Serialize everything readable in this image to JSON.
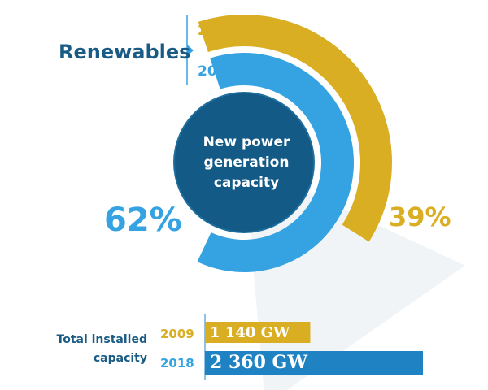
{
  "chart_data": {
    "type": "radial-bar",
    "title": "Renewables",
    "center_label": "New power generation capacity",
    "series": [
      {
        "name": "2009",
        "share_percent": 39,
        "label": "39%",
        "color": "#d9ae22"
      },
      {
        "name": "2018",
        "share_percent": 62,
        "label": "62%",
        "color": "#35a3e2"
      }
    ],
    "total_installed": {
      "label": "Total installed capacity",
      "unit": "GW",
      "bars": [
        {
          "year": "2009",
          "value": 1140,
          "label": "1 140 GW",
          "color": "#d9ae22"
        },
        {
          "year": "2018",
          "value": 2360,
          "label": "2 360 GW",
          "color": "#1f83c3"
        }
      ]
    }
  },
  "colors": {
    "title": "#1a5b85",
    "center": "#135a87"
  }
}
